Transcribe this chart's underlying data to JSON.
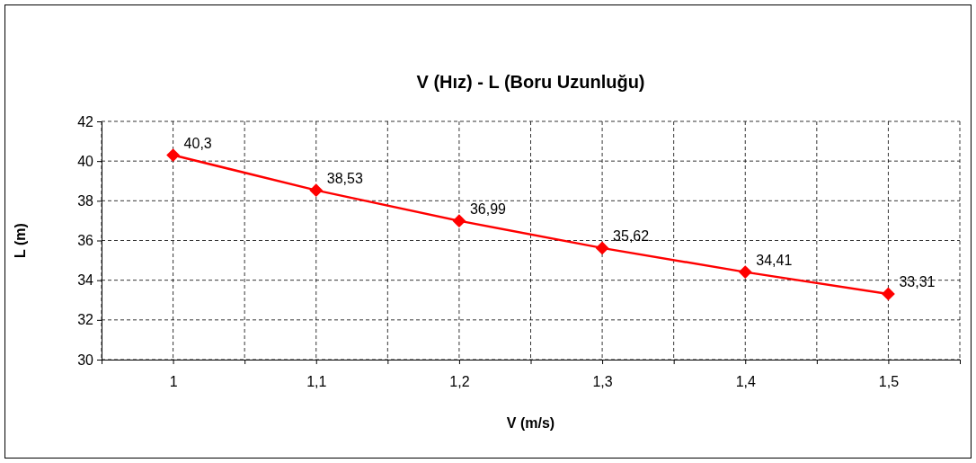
{
  "chart_data": {
    "type": "line",
    "title": "V (Hız) - L (Boru Uzunluğu)",
    "xlabel": "V (m/s)",
    "ylabel": "L (m)",
    "x": [
      1,
      1.1,
      1.2,
      1.3,
      1.4,
      1.5
    ],
    "series": [
      {
        "color": "#ff0000",
        "values": [
          40.3,
          38.53,
          36.99,
          35.62,
          34.41,
          33.31
        ],
        "value_labels": [
          "40,3",
          "38,53",
          "36,99",
          "35,62",
          "34,41",
          "33,31"
        ]
      }
    ],
    "xlim": [
      0.95,
      1.55
    ],
    "xticks": [
      {
        "value": 0.95,
        "label": null
      },
      {
        "value": 1,
        "label": "1"
      },
      {
        "value": 1.05,
        "label": null
      },
      {
        "value": 1.1,
        "label": "1,1"
      },
      {
        "value": 1.15,
        "label": null
      },
      {
        "value": 1.2,
        "label": "1,2"
      },
      {
        "value": 1.25,
        "label": null
      },
      {
        "value": 1.3,
        "label": "1,3"
      },
      {
        "value": 1.35,
        "label": null
      },
      {
        "value": 1.4,
        "label": "1,4"
      },
      {
        "value": 1.45,
        "label": null
      },
      {
        "value": 1.5,
        "label": "1,5"
      },
      {
        "value": 1.55,
        "label": null
      }
    ],
    "ylim": [
      30,
      42
    ],
    "yticks": [
      30,
      32,
      34,
      36,
      38,
      40,
      42
    ],
    "grid": true,
    "marker": "diamond",
    "line_style": "solid"
  }
}
